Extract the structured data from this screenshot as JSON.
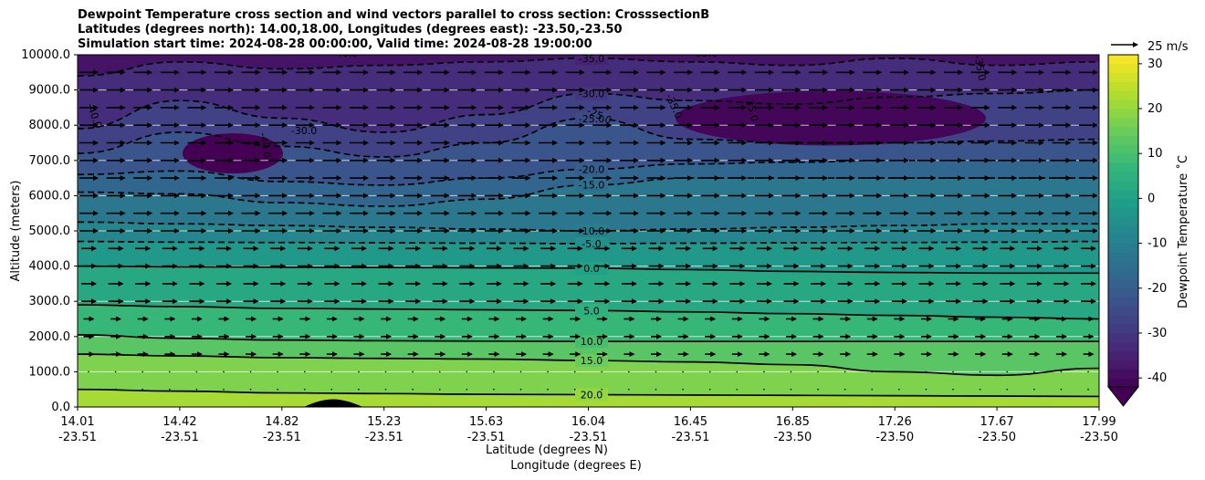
{
  "chart_data": {
    "type": "contourf",
    "title_lines": [
      "Dewpoint Temperature cross section and wind vectors parallel to cross section: CrosssectionB",
      "Latitudes (degrees north): 14.00,18.00, Longitudes (degrees east): -23.50,-23.50",
      "Simulation start time: 2024-08-28 00:00:00, Valid time: 2024-08-28 19:00:00"
    ],
    "xlabel_line1": "Latitude (degrees N)",
    "xlabel_line2": "Longitude (degrees E)",
    "ylabel": "Altitude (meters)",
    "ylim": [
      0,
      10000
    ],
    "yticks": [
      "0.0",
      "1000.0",
      "2000.0",
      "3000.0",
      "4000.0",
      "5000.0",
      "6000.0",
      "7000.0",
      "8000.0",
      "9000.0",
      "10000.0"
    ],
    "xticks": [
      {
        "lat": "14.01",
        "lon": "-23.51"
      },
      {
        "lat": "14.42",
        "lon": "-23.51"
      },
      {
        "lat": "14.82",
        "lon": "-23.51"
      },
      {
        "lat": "15.23",
        "lon": "-23.51"
      },
      {
        "lat": "15.63",
        "lon": "-23.51"
      },
      {
        "lat": "16.04",
        "lon": "-23.51"
      },
      {
        "lat": "16.45",
        "lon": "-23.51"
      },
      {
        "lat": "16.85",
        "lon": "-23.50"
      },
      {
        "lat": "17.26",
        "lon": "-23.50"
      },
      {
        "lat": "17.67",
        "lon": "-23.50"
      },
      {
        "lat": "17.99",
        "lon": "-23.50"
      }
    ],
    "grid": "horizontal",
    "colorbar": {
      "label": "Dewpoint Temperature $^\\circ$C",
      "label_display": "Dewpoint Temperature ˚C",
      "range": [
        -42,
        32
      ],
      "ticks": [
        "-40",
        "-30",
        "-20",
        "-10",
        "0",
        "10",
        "20",
        "30"
      ],
      "extend": "min",
      "colormap": "viridis"
    },
    "quiver_key": {
      "label": "25 m/s"
    },
    "contours": [
      {
        "level": 20,
        "label": "20.0",
        "style": "solid",
        "alt": [
          500,
          450,
          400,
          380,
          360,
          350,
          340,
          330,
          320,
          310,
          300
        ]
      },
      {
        "level": 15,
        "label": "15.0",
        "style": "solid",
        "alt": [
          1500,
          1450,
          1400,
          1380,
          1360,
          1320,
          1280,
          1200,
          1000,
          900,
          1100
        ]
      },
      {
        "level": 10,
        "label": "10.0",
        "style": "solid",
        "alt": [
          2050,
          1950,
          1900,
          1880,
          1870,
          1860,
          1860,
          1860,
          1860,
          1860,
          1860
        ]
      },
      {
        "level": 5,
        "label": "5.0",
        "style": "solid",
        "alt": [
          2900,
          2850,
          2800,
          2780,
          2760,
          2740,
          2700,
          2650,
          2600,
          2550,
          2500
        ]
      },
      {
        "level": 0,
        "label": "0.0",
        "style": "solid",
        "alt": [
          4000,
          3980,
          3970,
          3960,
          3950,
          3940,
          3900,
          3850,
          3820,
          3800,
          3800
        ]
      },
      {
        "level": -5,
        "label": "-5.0",
        "style": "dashed",
        "alt": [
          4700,
          4680,
          4670,
          4660,
          4650,
          4640,
          4650,
          4660,
          4670,
          4680,
          4700
        ]
      },
      {
        "level": -10,
        "label": "-10.0",
        "style": "dashed",
        "alt": [
          5250,
          5200,
          5150,
          5100,
          5050,
          5000,
          5050,
          5100,
          5150,
          5200,
          5200
        ]
      },
      {
        "level": -15,
        "label": "-15.0",
        "style": "dashed",
        "alt": [
          6100,
          6050,
          5800,
          5700,
          5900,
          6300,
          6500,
          6500,
          6500,
          6500,
          6500
        ]
      },
      {
        "level": -20,
        "label": "-20.0",
        "style": "dashed",
        "alt": [
          6600,
          6700,
          6400,
          6300,
          6500,
          6750,
          6900,
          6950,
          7000,
          7000,
          7000
        ]
      },
      {
        "level": -25,
        "label": "-25.0",
        "style": "dashed",
        "alt": [
          7200,
          7800,
          7400,
          7100,
          7500,
          8200,
          7600,
          7500,
          7500,
          7550,
          7600
        ]
      },
      {
        "level": -30,
        "label": "-30.0",
        "style": "dashed",
        "alt": [
          7900,
          8700,
          8200,
          7800,
          8300,
          8900,
          8700,
          8600,
          8800,
          8900,
          9000
        ]
      },
      {
        "level": -35,
        "label": "-35.0",
        "style": "dashed",
        "alt": [
          9400,
          9800,
          9600,
          9700,
          9800,
          9900,
          9800,
          9700,
          9900,
          9700,
          9800
        ]
      }
    ],
    "extra_contour_labels": [
      "-40.0",
      "-40.0",
      "-40.0",
      "-35.0",
      "-35.0",
      "-35.0",
      "-35.0",
      "-30.0",
      "-25.0"
    ]
  }
}
